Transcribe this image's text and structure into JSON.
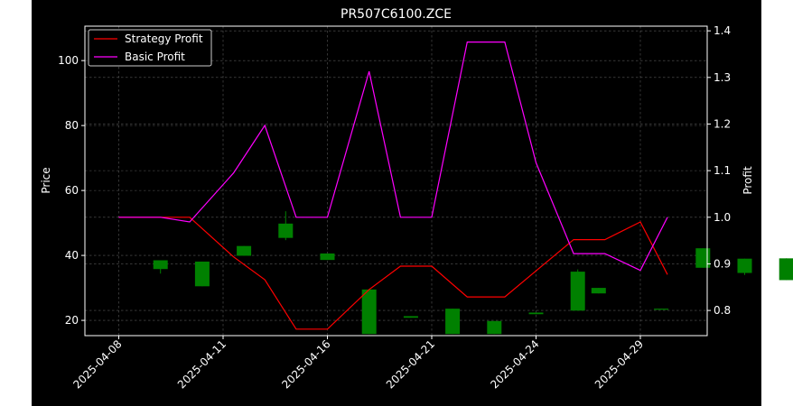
{
  "chart_data": {
    "type": "candlestick",
    "title": "PR507C6100.ZCE",
    "ylabel_left": "Price",
    "ylabel_right": "Profit",
    "x_tick_labels": [
      "2025-04-08",
      "2025-04-11",
      "2025-04-16",
      "2025-04-21",
      "2025-04-24",
      "2025-04-29"
    ],
    "y_left_ticks": [
      20,
      40,
      60,
      80,
      100
    ],
    "y_right_ticks": [
      0.8,
      0.9,
      1.0,
      1.1,
      1.2,
      1.3,
      1.4
    ],
    "ylim_left": [
      15.3,
      110.6
    ],
    "ylim_right": [
      0.746,
      1.41
    ],
    "grid": true,
    "legend_position": "upper-left",
    "colors": {
      "background": "#000000",
      "up": "#008000",
      "down": "#ff0000",
      "strategy_line": "#ff0000",
      "basic_line": "#ff00ff"
    },
    "candles": [
      {
        "open": 35.8,
        "close": 38.5,
        "high": 38.5,
        "low": 34.4
      },
      {
        "open": 30.5,
        "close": 38.1,
        "high": 38.1,
        "low": 30.5
      },
      {
        "open": 39.9,
        "close": 42.9,
        "high": 42.9,
        "low": 39.9
      },
      {
        "open": 45.4,
        "close": 49.8,
        "high": 53.6,
        "low": 44.7
      },
      {
        "open": 38.6,
        "close": 40.6,
        "high": 40.6,
        "low": 38.6
      },
      {
        "open": 15.8,
        "close": 29.5,
        "high": 29.5,
        "low": 15.8
      },
      {
        "open": 20.8,
        "close": 21.3,
        "high": 21.3,
        "low": 20.8
      },
      {
        "open": 15.8,
        "close": 23.6,
        "high": 23.6,
        "low": 15.8
      },
      {
        "open": 15.8,
        "close": 19.8,
        "high": 19.8,
        "low": 15.8
      },
      {
        "open": 21.9,
        "close": 22.4,
        "high": 22.4,
        "low": 21.9
      },
      {
        "open": 23.0,
        "close": 35.0,
        "high": 35.7,
        "low": 23.0
      },
      {
        "open": 28.3,
        "close": 30.0,
        "high": 30.0,
        "low": 28.3
      },
      {
        "open": 23.4,
        "close": 23.6,
        "high": 23.6,
        "low": 23.4
      },
      {
        "open": 36.2,
        "close": 42.2,
        "high": 42.2,
        "low": 36.2
      },
      {
        "open": 34.6,
        "close": 39.0,
        "high": 39.0,
        "low": 34.0
      },
      {
        "open": 32.4,
        "close": 39.1,
        "high": 39.1,
        "low": 32.4
      }
    ],
    "series": [
      {
        "name": "Strategy Profit",
        "values": [
          1.0,
          1.0,
          1.0,
          0.915,
          0.866,
          0.76,
          0.76,
          0.845,
          0.895,
          0.895,
          0.829,
          0.829,
          0.885,
          0.952,
          0.952,
          0.99,
          0.877
        ]
      },
      {
        "name": "Basic Profit",
        "values": [
          1.0,
          1.0,
          0.99,
          1.095,
          1.197,
          1.0,
          1.0,
          1.313,
          1.0,
          1.0,
          1.376,
          1.376,
          1.117,
          0.922,
          0.922,
          0.886,
          1.0
        ]
      }
    ]
  }
}
